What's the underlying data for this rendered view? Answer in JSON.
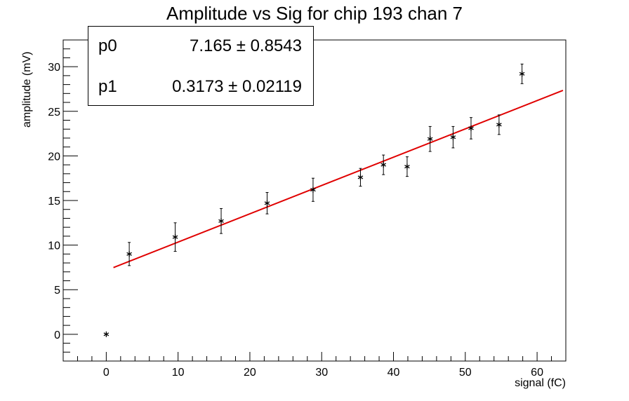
{
  "chart_data": {
    "type": "scatter",
    "title": "Amplitude vs Sig for chip 193 chan 7",
    "xlabel": "signal (fC)",
    "ylabel": "amplitude (mV)",
    "xlim": [
      -6,
      64
    ],
    "ylim": [
      -3,
      33
    ],
    "xticks": [
      0,
      10,
      20,
      30,
      40,
      50,
      60
    ],
    "yticks": [
      0,
      5,
      10,
      15,
      20,
      25,
      30
    ],
    "x_minor_step": 2,
    "y_minor_step": 1,
    "grid": false,
    "points": [
      {
        "x": 0.0,
        "y": 0.0,
        "err": 0
      },
      {
        "x": 3.2,
        "y": 9.0,
        "err": 1.3
      },
      {
        "x": 9.6,
        "y": 10.9,
        "err": 1.6
      },
      {
        "x": 16.0,
        "y": 12.7,
        "err": 1.4
      },
      {
        "x": 22.4,
        "y": 14.7,
        "err": 1.2
      },
      {
        "x": 28.8,
        "y": 16.2,
        "err": 1.3
      },
      {
        "x": 35.4,
        "y": 17.6,
        "err": 1.0
      },
      {
        "x": 38.6,
        "y": 19.0,
        "err": 1.1
      },
      {
        "x": 41.9,
        "y": 18.8,
        "err": 1.1
      },
      {
        "x": 45.1,
        "y": 21.9,
        "err": 1.4
      },
      {
        "x": 48.3,
        "y": 22.1,
        "err": 1.2
      },
      {
        "x": 50.8,
        "y": 23.1,
        "err": 1.2
      },
      {
        "x": 54.7,
        "y": 23.5,
        "err": 1.1
      },
      {
        "x": 57.9,
        "y": 29.2,
        "err": 1.1
      }
    ],
    "fit": {
      "color": "#e00000",
      "p0": 7.165,
      "p1": 0.3173,
      "x_range": [
        1.0,
        63.6
      ]
    },
    "marker_color": "#000000"
  },
  "stats": {
    "p0_name": "p0",
    "p0_value": "7.165 ± 0.8543",
    "p1_name": "p1",
    "p1_value": "0.3173 ± 0.02119"
  }
}
